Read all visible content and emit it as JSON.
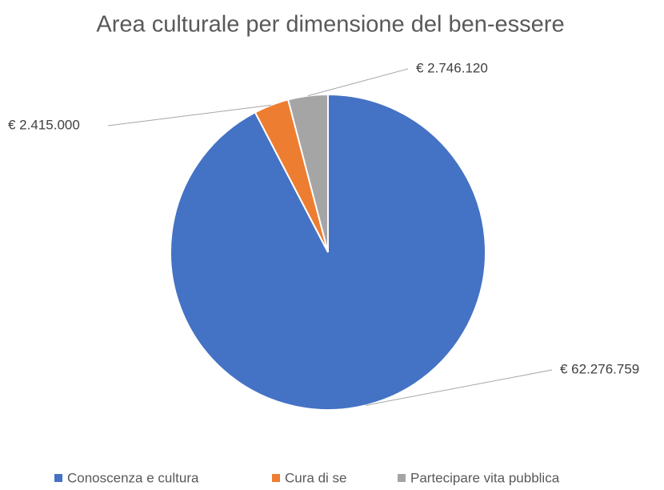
{
  "chart_data": {
    "type": "pie",
    "title": "Area culturale per dimensione del ben-essere",
    "categories": [
      "Conoscenza e cultura",
      "Cura di se",
      "Partecipare vita pubblica"
    ],
    "values": [
      62276759,
      2415000,
      2746120
    ],
    "value_labels": [
      "€ 62.276.759",
      "€ 2.415.000",
      "€ 2.746.120"
    ],
    "colors": [
      "#4472c4",
      "#ed7d31",
      "#a5a5a5"
    ],
    "legend": "bottom"
  }
}
